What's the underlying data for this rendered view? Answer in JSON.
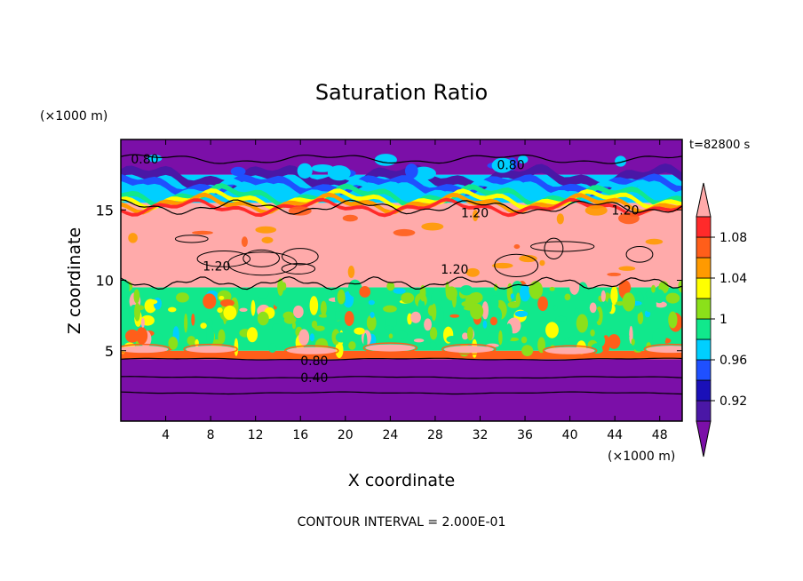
{
  "chart_data": {
    "type": "heatmap",
    "title": "Saturation Ratio",
    "xlabel": "X coordinate",
    "ylabel": "Z coordinate",
    "x_unit": "(×1000 m)",
    "y_unit": "(×1000 m)",
    "time_label": "t=82800 s",
    "footer": "CONTOUR INTERVAL = 2.000E-01",
    "xlim": [
      0,
      50
    ],
    "ylim": [
      0,
      20
    ],
    "x_ticks": [
      4,
      8,
      12,
      16,
      20,
      24,
      28,
      32,
      36,
      40,
      44,
      48
    ],
    "y_ticks": [
      5,
      10,
      15
    ],
    "colorbar": {
      "levels": [
        0.92,
        0.96,
        1,
        1.04,
        1.08
      ],
      "level_labels": [
        "0.92",
        "0.96",
        "1",
        "1.04",
        "1.08"
      ],
      "bins": [
        {
          "range": "<0.90",
          "color": "#7b0fa8"
        },
        {
          "range": "0.90-0.92",
          "color": "#4a17a6"
        },
        {
          "range": "0.92-0.94",
          "color": "#1a10b8"
        },
        {
          "range": "0.94-0.96",
          "color": "#1f50ff"
        },
        {
          "range": "0.96-0.98",
          "color": "#00cfff"
        },
        {
          "range": "0.98-1.00",
          "color": "#11e88c"
        },
        {
          "range": "1.00-1.02",
          "color": "#8be01a"
        },
        {
          "range": "1.02-1.04",
          "color": "#ffff00"
        },
        {
          "range": "1.04-1.06",
          "color": "#ff9a00"
        },
        {
          "range": "1.06-1.08",
          "color": "#ff5e1a"
        },
        {
          "range": "1.08-1.10",
          "color": "#ff2a2a"
        },
        {
          "range": ">1.10",
          "color": "#ffaaaa"
        }
      ]
    },
    "contour_labels": [
      {
        "text": "0.80",
        "x": 0.9,
        "z": 18.6
      },
      {
        "text": "0.80",
        "x": 33.5,
        "z": 18.2
      },
      {
        "text": "1.20",
        "x": 30.3,
        "z": 14.8
      },
      {
        "text": "1.20",
        "x": 43.7,
        "z": 15.0
      },
      {
        "text": "1.20",
        "x": 7.3,
        "z": 11.0
      },
      {
        "text": "1.20",
        "x": 28.5,
        "z": 10.8
      },
      {
        "text": "0.80",
        "x": 16.0,
        "z": 4.3
      },
      {
        "text": "0.40",
        "x": 16.0,
        "z": 3.1
      }
    ],
    "bands": [
      {
        "z_range": [
          0,
          4.4
        ],
        "value": "<0.90"
      },
      {
        "z_range": [
          4.4,
          5.0
        ],
        "value": "0.98-1.10"
      },
      {
        "z_range": [
          5.0,
          9.5
        ],
        "value": "0.98-1.02"
      },
      {
        "z_range": [
          9.5,
          15.5
        ],
        "value": ">1.10"
      },
      {
        "z_range": [
          15.5,
          17.5
        ],
        "value": "0.90-1.10"
      },
      {
        "z_range": [
          17.5,
          20
        ],
        "value": "<0.90"
      }
    ]
  }
}
